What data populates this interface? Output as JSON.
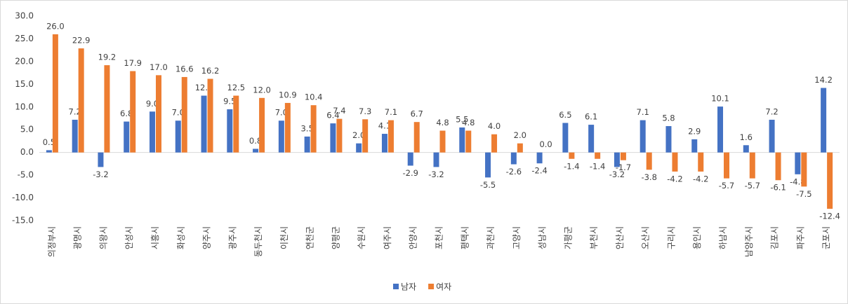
{
  "chart_data": {
    "type": "bar",
    "categories": [
      "의정부시",
      "광명시",
      "의왕시",
      "안성시",
      "시흥시",
      "화성시",
      "양주시",
      "광주시",
      "동두천시",
      "이천시",
      "연천군",
      "양평군",
      "수원시",
      "여주시",
      "안양시",
      "포천시",
      "평택시",
      "과천시",
      "고양시",
      "성남시",
      "가평군",
      "부천시",
      "안산시",
      "오산시",
      "구리시",
      "용인시",
      "하남시",
      "남양주시",
      "김포시",
      "파주시",
      "군포시"
    ],
    "series": [
      {
        "name": "남자",
        "color": "#4472c4",
        "values": [
          0.5,
          7.2,
          -3.2,
          6.8,
          9,
          7,
          12.5,
          9.5,
          0.8,
          7,
          3.5,
          6.4,
          2,
          4.1,
          -2.9,
          -3.2,
          5.5,
          -5.5,
          -2.6,
          -2.4,
          6.5,
          6.1,
          -3.2,
          7.1,
          5.8,
          2.9,
          10.1,
          1.6,
          7.2,
          -4.8,
          14.2
        ],
        "value_labels": [
          "0.5",
          "7.2",
          "-3.2",
          "6.8",
          "9.0",
          "7.0",
          "12.5",
          "9.5",
          "0.8",
          "7.0",
          "3.5",
          "6.4",
          "2.0",
          "4.1",
          "-2.9",
          "-3.2",
          "5.5",
          "-5.5",
          "-2.6",
          "-2.4",
          "6.5",
          "6.1",
          "-3.2",
          "7.1",
          "5.8",
          "2.9",
          "10.1",
          "1.6",
          "7.2",
          "-4.8",
          "14.2"
        ]
      },
      {
        "name": "여자",
        "color": "#ed7d31",
        "values": [
          26,
          22.9,
          19.2,
          17.9,
          17,
          16.6,
          16.2,
          12.5,
          12,
          10.9,
          10.4,
          7.4,
          7.3,
          7.1,
          6.7,
          4.8,
          4.8,
          4,
          2,
          0,
          -1.4,
          -1.4,
          -1.7,
          -3.8,
          -4.2,
          -4.2,
          -5.7,
          -5.7,
          -6.1,
          -7.5,
          -12.4
        ],
        "value_labels": [
          "26.0",
          "22.9",
          "19.2",
          "17.9",
          "17.0",
          "16.6",
          "16.2",
          "12.5",
          "12.0",
          "10.9",
          "10.4",
          "7.4",
          "7.3",
          "7.1",
          "6.7",
          "4.8",
          "4.8",
          "4.0",
          "2.0",
          "0.0",
          "-1.4",
          "-1.4",
          "-1.7",
          "-3.8",
          "-4.2",
          "-4.2",
          "-5.7",
          "-5.7",
          "-6.1",
          "-7.5",
          "-12.4"
        ]
      }
    ],
    "ylim": [
      -15,
      30
    ],
    "yticks": [
      {
        "value": -15,
        "label": "-15.0"
      },
      {
        "value": -10,
        "label": "-10.0"
      },
      {
        "value": -5,
        "label": "-5.0"
      },
      {
        "value": 0,
        "label": "0.0"
      },
      {
        "value": 5,
        "label": "5.0"
      },
      {
        "value": 10,
        "label": "10.0"
      },
      {
        "value": 15,
        "label": "15.0"
      },
      {
        "value": 20,
        "label": "20.0"
      },
      {
        "value": 25,
        "label": "25.0"
      },
      {
        "value": 30,
        "label": "30.0"
      }
    ],
    "grid": false,
    "legend": "bottom"
  }
}
